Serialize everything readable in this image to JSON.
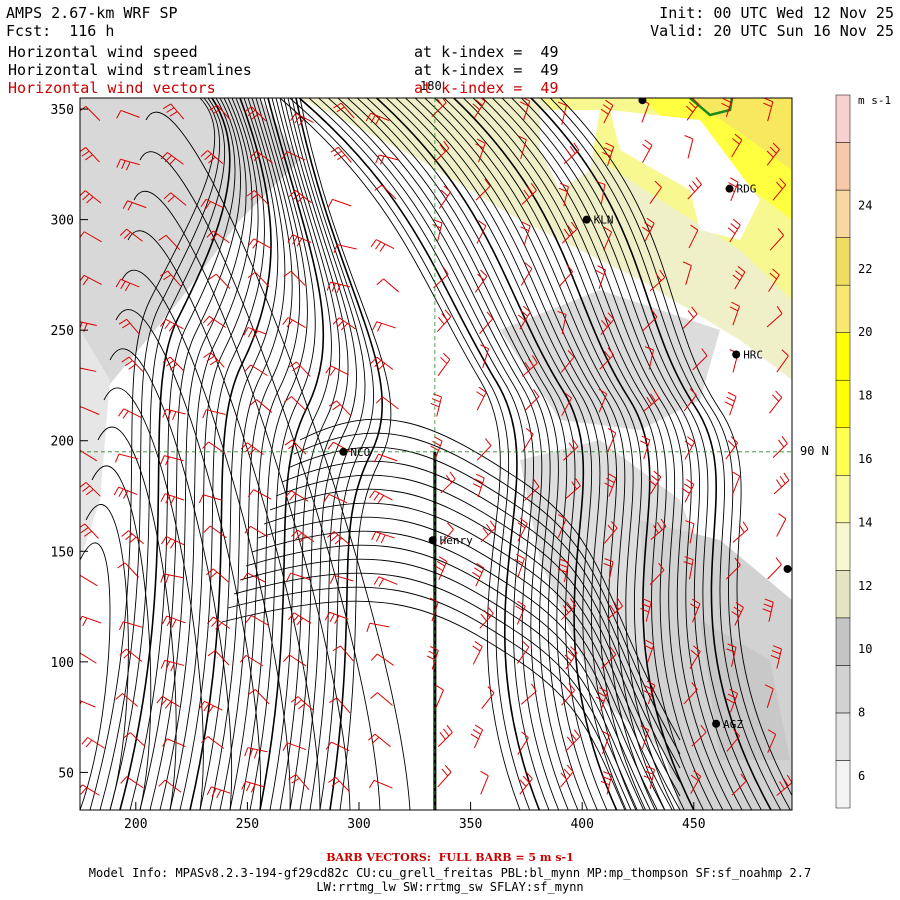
{
  "header": {
    "model_title": "AMPS 2.67-km WRF SP",
    "forecast": "Fcst:  116 h",
    "init": "Init: 00 UTC Wed 12 Nov 25",
    "valid": "Valid: 20 UTC Sun 16 Nov 25",
    "fields": [
      {
        "name": "Horizontal wind speed",
        "level": "at k-index =  49"
      },
      {
        "name": "Horizontal wind streamlines",
        "level": "at k-index =  49"
      },
      {
        "name": "Horizontal wind vectors",
        "level": "at k-index =  49"
      }
    ]
  },
  "map": {
    "x_ticks": [
      "200",
      "250",
      "300",
      "350",
      "400",
      "450"
    ],
    "y_ticks": [
      "50",
      "100",
      "150",
      "200",
      "250",
      "300",
      "350"
    ],
    "meridian_label": "180",
    "latitude_label": "90 N",
    "stations": [
      {
        "name": "NCO",
        "x": 293,
        "y": 195
      },
      {
        "name": "Henry",
        "x": 333,
        "y": 155
      },
      {
        "name": "KLN",
        "x": 402,
        "y": 300
      },
      {
        "name": "RDG",
        "x": 466,
        "y": 314
      },
      {
        "name": "HRC",
        "x": 469,
        "y": 239
      },
      {
        "name": "AGZ",
        "x": 460,
        "y": 72
      },
      {
        "name": "",
        "x": 427,
        "y": 354
      },
      {
        "name": "",
        "x": 492,
        "y": 142
      }
    ],
    "colors": {
      "streamline": "#000000",
      "barb": "#dd0000",
      "grid": "#2a8a2a",
      "contour": "#1a8a1a"
    }
  },
  "colorbar": {
    "unit": "m s-1",
    "labels": [
      "6",
      "8",
      "10",
      "12",
      "14",
      "16",
      "18",
      "20",
      "22",
      "24"
    ],
    "colors": [
      "#f4f4f4",
      "#e4e4e4",
      "#d2d2d2",
      "#c4c4c4",
      "#e4e4c0",
      "#f8f8d0",
      "#fafaa0",
      "#ffff50",
      "#ffff00",
      "#ffff00",
      "#f8e870",
      "#f0dc60",
      "#f8d8a0",
      "#f8c8a8",
      "#f8d0d0"
    ]
  },
  "footer": {
    "barb_note": "BARB VECTORS:  FULL BARB = 5 m s-1",
    "model_info": "Model Info: MPASv8.2.3-194-gf29cd82c CU:cu_grell_freitas PBL:bl_mynn MP:mp_thompson SF:sf_noahmp 2.7",
    "model_info_2": "LW:rrtmg_lw SW:rrtmg_sw SFLAY:sf_mynn"
  }
}
